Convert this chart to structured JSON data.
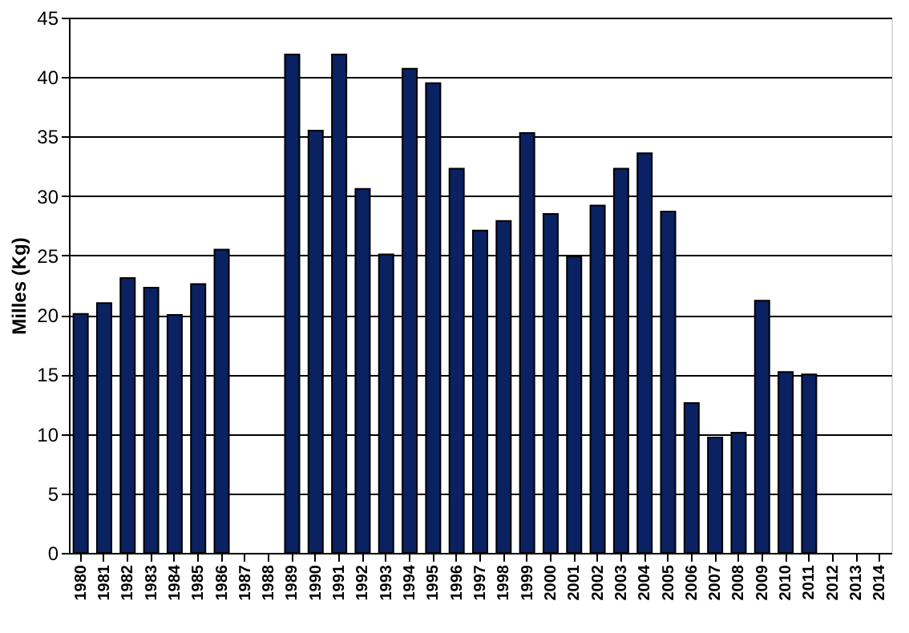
{
  "chart_data": {
    "type": "bar",
    "ylabel": "Milles (Kg)",
    "categories": [
      "1980",
      "1981",
      "1982",
      "1983",
      "1984",
      "1985",
      "1986",
      "1987",
      "1988",
      "1989",
      "1990",
      "1991",
      "1992",
      "1993",
      "1994",
      "1995",
      "1996",
      "1997",
      "1998",
      "1999",
      "2000",
      "2001",
      "2002",
      "2003",
      "2004",
      "2005",
      "2006",
      "2007",
      "2008",
      "2009",
      "2010",
      "2011",
      "2012",
      "2013",
      "2014"
    ],
    "values": [
      20.1,
      21.0,
      23.1,
      22.3,
      20.0,
      22.6,
      25.5,
      null,
      null,
      41.9,
      35.5,
      41.9,
      30.6,
      25.1,
      40.7,
      39.5,
      32.3,
      27.1,
      27.9,
      35.3,
      28.5,
      24.9,
      29.2,
      32.3,
      33.6,
      28.7,
      12.6,
      9.7,
      10.1,
      21.2,
      15.2,
      15.0,
      null,
      null,
      null
    ],
    "color": "#0a2162",
    "ylim": [
      0,
      45
    ],
    "yticks": [
      0,
      5,
      10,
      15,
      20,
      25,
      30,
      35,
      40,
      45
    ],
    "grid": "y"
  }
}
